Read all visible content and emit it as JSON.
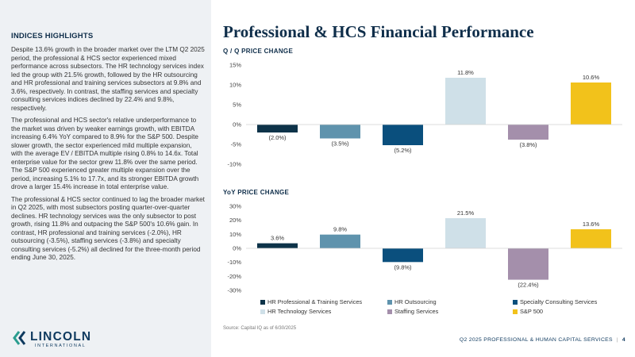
{
  "page_title": "Professional & HCS Financial Performance",
  "indices_heading": "INDICES HIGHLIGHTS",
  "paragraphs": [
    "Despite 13.6% growth in the broader market over the LTM Q2 2025 period, the professional & HCS sector experienced mixed performance across subsectors. The HR technology services index led the group with 21.5% growth, followed by the HR outsourcing and HR professional and training services subsectors at 9.8% and 3.6%, respectively. In contrast, the staffing services and specialty consulting services indices declined by 22.4% and 9.8%, respectively.",
    "The professional and HCS sector's relative underperformance to the market was driven by weaker earnings growth, with EBITDA increasing 6.4% YoY compared to 8.9% for the S&P 500. Despite slower growth, the sector experienced mild multiple expansion, with the average EV / EBITDA multiple rising 0.8% to 14.6x. Total enterprise value for the sector grew 11.8% over the same period. The S&P 500 experienced greater multiple expansion over the period, increasing 5.1% to 17.7x, and its stronger EBITDA growth drove a larger 15.4% increase in total enterprise value.",
    "The professional & HCS sector continued to lag the broader market in Q2 2025, with most subsectors posting quarter-over-quarter declines. HR technology services was the only subsector to post growth, rising 11.8% and outpacing the S&P 500's 10.6% gain. In contrast, HR professional and training services (-2.0%), HR outsourcing (-3.5%), staffing services (-3.8%) and specialty consulting services (-5.2%) all declined for the three-month period ending June 30, 2025."
  ],
  "logo": {
    "word": "LINCOLN",
    "sub": "INTERNATIONAL",
    "icon": "lincoln-chevron-logo"
  },
  "source": "Source: Capital IQ as of 6/30/2025",
  "footer": {
    "text": "Q2 2025 PROFESSIONAL & HUMAN CAPITAL SERVICES",
    "sep": "|",
    "page": "4"
  },
  "legend": [
    {
      "name": "HR Professional & Training Services",
      "color": "#0d3349"
    },
    {
      "name": "HR Outsourcing",
      "color": "#5f93ad"
    },
    {
      "name": "Specialty Consulting Services",
      "color": "#0a4f7d"
    },
    {
      "name": "HR Technology Services",
      "color": "#cfe0e8"
    },
    {
      "name": "Staffing Services",
      "color": "#a48fab"
    },
    {
      "name": "S&P 500",
      "color": "#f2c21b"
    }
  ],
  "chart_data": [
    {
      "type": "bar",
      "title": "Q / Q PRICE CHANGE",
      "categories": [
        "HR Professional & Training Services",
        "HR Outsourcing",
        "Specialty Consulting Services",
        "HR Technology Services",
        "Staffing Services",
        "S&P 500"
      ],
      "values": [
        -2.0,
        -3.5,
        -5.2,
        11.8,
        -3.8,
        10.6
      ],
      "data_labels": [
        "(2.0%)",
        "(3.5%)",
        "(5.2%)",
        "11.8%",
        "(3.8%)",
        "10.6%"
      ],
      "colors": [
        "#0d3349",
        "#5f93ad",
        "#0a4f7d",
        "#cfe0e8",
        "#a48fab",
        "#f2c21b"
      ],
      "ylim": [
        -10,
        15
      ],
      "yticks": [
        15,
        10,
        5,
        0,
        -5,
        -10
      ],
      "ytick_labels": [
        "15%",
        "10%",
        "5%",
        "0%",
        "-5%",
        "-10%"
      ],
      "grid": false,
      "legend": "bottom"
    },
    {
      "type": "bar",
      "title": "YoY PRICE CHANGE",
      "categories": [
        "HR Professional & Training Services",
        "HR Outsourcing",
        "Specialty Consulting Services",
        "HR Technology Services",
        "Staffing Services",
        "S&P 500"
      ],
      "values": [
        3.6,
        9.8,
        -9.8,
        21.5,
        -22.4,
        13.6
      ],
      "data_labels": [
        "3.6%",
        "9.8%",
        "(9.8%)",
        "21.5%",
        "(22.4%)",
        "13.6%"
      ],
      "colors": [
        "#0d3349",
        "#5f93ad",
        "#0a4f7d",
        "#cfe0e8",
        "#a48fab",
        "#f2c21b"
      ],
      "ylim": [
        -30,
        30
      ],
      "yticks": [
        30,
        20,
        10,
        0,
        -10,
        -20,
        -30
      ],
      "ytick_labels": [
        "30%",
        "20%",
        "10%",
        "0%",
        "-10%",
        "-20%",
        "-30%"
      ],
      "grid": false,
      "legend": "bottom"
    }
  ]
}
